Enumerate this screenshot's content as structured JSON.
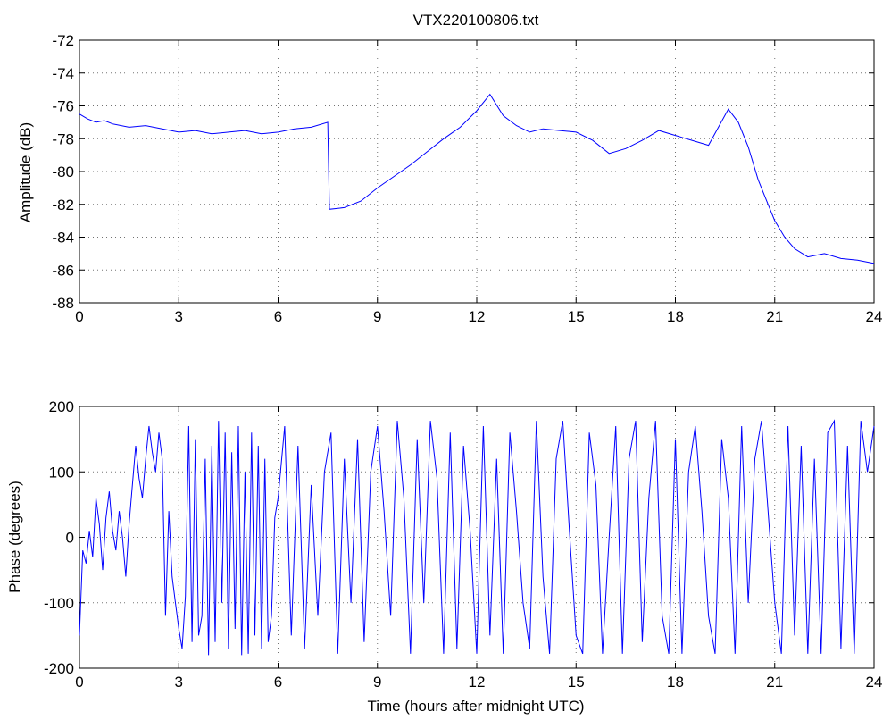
{
  "chart_data": [
    {
      "type": "line",
      "title": "VTX220100806.txt",
      "xlabel": "",
      "ylabel": "Amplitude (dB)",
      "xlim": [
        0,
        24
      ],
      "ylim": [
        -88,
        -72
      ],
      "xticks": [
        0,
        3,
        6,
        9,
        12,
        15,
        18,
        21,
        24
      ],
      "xtick_labels": [
        "0",
        "3",
        "6",
        "9",
        "12",
        "15",
        "18",
        "21",
        "24"
      ],
      "yticks": [
        -72,
        -74,
        -76,
        -78,
        -80,
        -82,
        -84,
        -86,
        -88
      ],
      "ytick_labels": [
        "-72",
        "-74",
        "-76",
        "-78",
        "-80",
        "-82",
        "-84",
        "-86",
        "-88"
      ],
      "grid": true,
      "color": "#0000ff",
      "series": [
        {
          "x": [
            0.0,
            0.25,
            0.5,
            0.75,
            1.0,
            1.5,
            2.0,
            2.5,
            3.0,
            3.5,
            4.0,
            4.5,
            5.0,
            5.5,
            6.0,
            6.5,
            7.0,
            7.5,
            7.55,
            8.0,
            8.5,
            9.0,
            9.5,
            10.0,
            10.5,
            11.0,
            11.5,
            12.0,
            12.4,
            12.8,
            13.2,
            13.6,
            14.0,
            14.5,
            15.0,
            15.5,
            16.0,
            16.5,
            17.0,
            17.5,
            18.0,
            18.5,
            19.0,
            19.3,
            19.6,
            19.9,
            20.2,
            20.5,
            20.8,
            21.0,
            21.3,
            21.6,
            22.0,
            22.5,
            23.0,
            23.5,
            24.0
          ],
          "y": [
            -76.5,
            -76.8,
            -77.0,
            -76.9,
            -77.1,
            -77.3,
            -77.2,
            -77.4,
            -77.6,
            -77.5,
            -77.7,
            -77.6,
            -77.5,
            -77.7,
            -77.6,
            -77.4,
            -77.3,
            -77.0,
            -82.3,
            -82.2,
            -81.8,
            -81.0,
            -80.3,
            -79.6,
            -78.8,
            -78.0,
            -77.3,
            -76.3,
            -75.3,
            -76.6,
            -77.2,
            -77.6,
            -77.4,
            -77.5,
            -77.6,
            -78.1,
            -78.9,
            -78.6,
            -78.1,
            -77.5,
            -77.8,
            -78.1,
            -78.4,
            -77.3,
            -76.2,
            -77.0,
            -78.5,
            -80.5,
            -82.0,
            -83.0,
            -84.0,
            -84.7,
            -85.2,
            -85.0,
            -85.3,
            -85.4,
            -85.6
          ]
        }
      ]
    },
    {
      "type": "line",
      "title": "",
      "xlabel": "Time (hours after midnight UTC)",
      "ylabel": "Phase (degrees)",
      "xlim": [
        0,
        24
      ],
      "ylim": [
        -200,
        200
      ],
      "xticks": [
        0,
        3,
        6,
        9,
        12,
        15,
        18,
        21,
        24
      ],
      "xtick_labels": [
        "0",
        "3",
        "6",
        "9",
        "12",
        "15",
        "18",
        "21",
        "24"
      ],
      "yticks": [
        200,
        100,
        0,
        -100,
        -200
      ],
      "ytick_labels": [
        "200",
        "100",
        "0",
        "-100",
        "-200"
      ],
      "grid": true,
      "color": "#0000ff",
      "series": [
        {
          "x": [
            0.0,
            0.1,
            0.2,
            0.3,
            0.4,
            0.5,
            0.6,
            0.7,
            0.8,
            0.9,
            1.0,
            1.1,
            1.2,
            1.3,
            1.4,
            1.5,
            1.6,
            1.7,
            1.8,
            1.9,
            2.0,
            2.1,
            2.2,
            2.3,
            2.4,
            2.5,
            2.6,
            2.7,
            2.8,
            2.9,
            3.0,
            3.1,
            3.2,
            3.3,
            3.4,
            3.5,
            3.6,
            3.7,
            3.8,
            3.9,
            4.0,
            4.1,
            4.2,
            4.3,
            4.4,
            4.5,
            4.6,
            4.7,
            4.8,
            4.9,
            5.0,
            5.1,
            5.2,
            5.3,
            5.4,
            5.5,
            5.6,
            5.7,
            5.8,
            5.9,
            6.0,
            6.2,
            6.4,
            6.6,
            6.8,
            7.0,
            7.2,
            7.4,
            7.6,
            7.8,
            8.0,
            8.2,
            8.4,
            8.6,
            8.8,
            9.0,
            9.2,
            9.4,
            9.6,
            9.8,
            10.0,
            10.2,
            10.4,
            10.6,
            10.8,
            11.0,
            11.2,
            11.4,
            11.6,
            11.8,
            12.0,
            12.2,
            12.4,
            12.6,
            12.8,
            13.0,
            13.2,
            13.4,
            13.6,
            13.8,
            14.0,
            14.2,
            14.4,
            14.6,
            14.8,
            15.0,
            15.2,
            15.4,
            15.6,
            15.8,
            16.0,
            16.2,
            16.4,
            16.6,
            16.8,
            17.0,
            17.2,
            17.4,
            17.6,
            17.8,
            18.0,
            18.2,
            18.4,
            18.6,
            18.8,
            19.0,
            19.2,
            19.4,
            19.6,
            19.8,
            20.0,
            20.2,
            20.4,
            20.6,
            20.8,
            21.0,
            21.2,
            21.4,
            21.6,
            21.8,
            22.0,
            22.2,
            22.4,
            22.6,
            22.8,
            23.0,
            23.2,
            23.4,
            23.6,
            23.8,
            24.0
          ],
          "y": [
            -150,
            -20,
            -40,
            10,
            -30,
            60,
            20,
            -50,
            30,
            70,
            10,
            -20,
            40,
            0,
            -60,
            20,
            80,
            140,
            90,
            60,
            120,
            170,
            130,
            100,
            160,
            120,
            -120,
            40,
            -60,
            -100,
            -140,
            -170,
            -90,
            170,
            -160,
            150,
            -150,
            -120,
            120,
            -180,
            140,
            -160,
            178,
            -100,
            160,
            -170,
            130,
            -140,
            170,
            -180,
            100,
            -178,
            160,
            -150,
            140,
            -170,
            120,
            -160,
            -120,
            30,
            60,
            170,
            -150,
            140,
            -170,
            80,
            -120,
            100,
            160,
            -178,
            120,
            -100,
            150,
            -160,
            100,
            170,
            40,
            -120,
            178,
            60,
            -178,
            150,
            -100,
            178,
            90,
            -178,
            160,
            -170,
            140,
            10,
            -178,
            170,
            -150,
            120,
            -178,
            160,
            40,
            -100,
            -170,
            178,
            -60,
            -178,
            120,
            178,
            10,
            -150,
            -178,
            160,
            80,
            -178,
            0,
            170,
            -178,
            120,
            178,
            -160,
            60,
            178,
            -120,
            -178,
            150,
            -178,
            100,
            170,
            40,
            -120,
            -178,
            150,
            60,
            -178,
            170,
            -100,
            120,
            178,
            40,
            -100,
            -178,
            170,
            -150,
            140,
            -178,
            120,
            -178,
            160,
            178,
            -170,
            140,
            -178,
            178,
            100,
            170
          ]
        }
      ]
    }
  ]
}
